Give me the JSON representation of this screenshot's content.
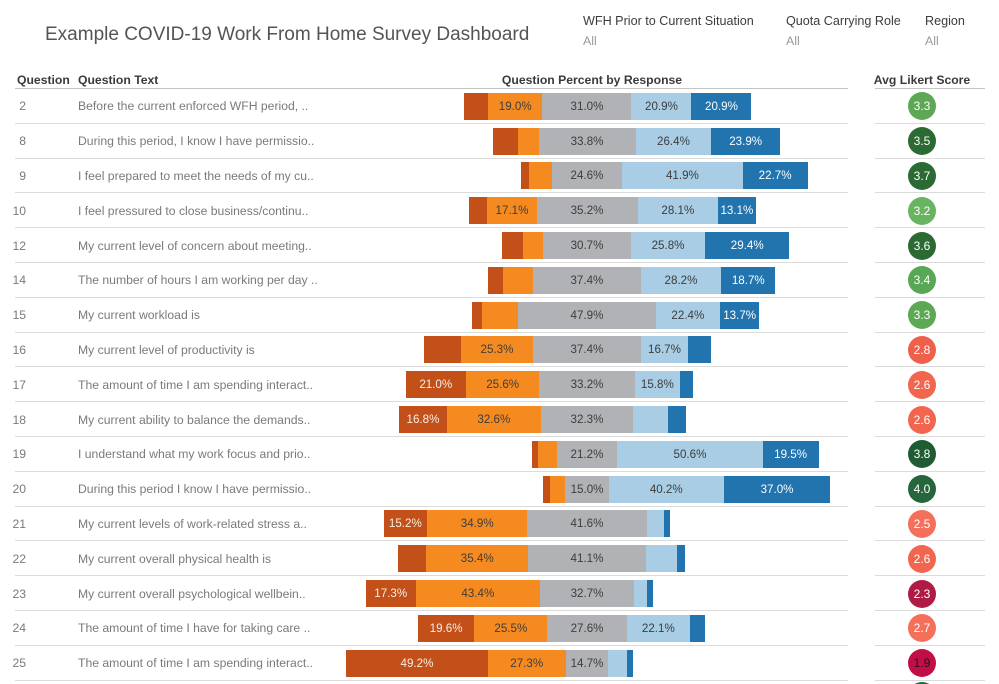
{
  "title": "Example COVID-19 Work From Home Survey Dashboard",
  "filters": [
    {
      "label": "WFH Prior to Current Situation",
      "value": "All"
    },
    {
      "label": "Quota Carrying Role",
      "value": "All"
    },
    {
      "label": "Region",
      "value": "All"
    }
  ],
  "columns": {
    "question": "Question",
    "question_text": "Question Text",
    "percent": "Question Percent by Response",
    "score": "Avg Likert Score"
  },
  "chart_data": {
    "type": "bar",
    "subtype": "horizontal_diverging_stacked_likert",
    "title": "Question Percent by Response",
    "x_unit": "percent_of_responses",
    "axis_hidden": true,
    "segment_colors": [
      "#C25018",
      "#F58A20",
      "#B0B2B5",
      "#A8CDE5",
      "#2174AE"
    ],
    "neutral_centered": true,
    "rows": [
      {
        "question": "2",
        "text": "Before the current enforced WFH period, ..",
        "values": [
          8.2,
          19.0,
          31.0,
          20.9,
          20.9
        ],
        "labels": [
          "",
          "19.0%",
          "31.0%",
          "20.9%",
          "20.9%"
        ],
        "score": "3.3",
        "score_color": "#5CA854",
        "score_text_color": "#FFFFFF"
      },
      {
        "question": "8",
        "text": "During this period, I know I have permissio..",
        "values": [
          8.8,
          7.1,
          33.8,
          26.4,
          23.9
        ],
        "labels": [
          "",
          "",
          "33.8%",
          "26.4%",
          "23.9%"
        ],
        "score": "3.5",
        "score_color": "#2B6A33",
        "score_text_color": "#FFFFFF"
      },
      {
        "question": "9",
        "text": "I feel prepared to meet the needs of my cu..",
        "values": [
          3.0,
          7.8,
          24.6,
          41.9,
          22.7
        ],
        "labels": [
          "",
          "",
          "24.6%",
          "41.9%",
          "22.7%"
        ],
        "score": "3.7",
        "score_color": "#2B6A33",
        "score_text_color": "#FFFFFF"
      },
      {
        "question": "10",
        "text": "I feel pressured to close business/continu..",
        "values": [
          6.5,
          17.1,
          35.2,
          28.1,
          13.1
        ],
        "labels": [
          "",
          "17.1%",
          "35.2%",
          "28.1%",
          "13.1%"
        ],
        "score": "3.2",
        "score_color": "#69B460",
        "score_text_color": "#FFFFFF"
      },
      {
        "question": "12",
        "text": "My current level of concern about meeting..",
        "values": [
          7.0,
          7.1,
          30.7,
          25.8,
          29.4
        ],
        "labels": [
          "",
          "",
          "30.7%",
          "25.8%",
          "29.4%"
        ],
        "score": "3.6",
        "score_color": "#2B6A33",
        "score_text_color": "#FFFFFF"
      },
      {
        "question": "14",
        "text": "The number of hours I am working per day ..",
        "values": [
          5.2,
          10.5,
          37.4,
          28.2,
          18.7
        ],
        "labels": [
          "",
          "",
          "37.4%",
          "28.2%",
          "18.7%"
        ],
        "score": "3.4",
        "score_color": "#58A754",
        "score_text_color": "#FFFFFF"
      },
      {
        "question": "15",
        "text": "My current workload is",
        "values": [
          3.5,
          12.5,
          47.9,
          22.4,
          13.7
        ],
        "labels": [
          "",
          "",
          "47.9%",
          "22.4%",
          "13.7%"
        ],
        "score": "3.3",
        "score_color": "#5CA854",
        "score_text_color": "#FFFFFF"
      },
      {
        "question": "16",
        "text": "My current level of productivity is",
        "values": [
          12.7,
          25.3,
          37.4,
          16.7,
          7.9
        ],
        "labels": [
          "",
          "25.3%",
          "37.4%",
          "16.7%",
          ""
        ],
        "score": "2.8",
        "score_color": "#EF604B",
        "score_text_color": "#FFFFFF"
      },
      {
        "question": "17",
        "text": "The amount of time I am spending interact..",
        "values": [
          21.0,
          25.6,
          33.2,
          15.8,
          4.4
        ],
        "labels": [
          "21.0%",
          "25.6%",
          "33.2%",
          "15.8%",
          ""
        ],
        "score": "2.6",
        "score_color": "#F2654F",
        "score_text_color": "#FFFFFF"
      },
      {
        "question": "18",
        "text": "My current ability to balance the demands..",
        "values": [
          16.8,
          32.6,
          32.3,
          12.1,
          6.2
        ],
        "labels": [
          "16.8%",
          "32.6%",
          "32.3%",
          "",
          ""
        ],
        "score": "2.6",
        "score_color": "#F2654F",
        "score_text_color": "#FFFFFF"
      },
      {
        "question": "19",
        "text": "I understand what my work focus and prio..",
        "values": [
          2.3,
          6.4,
          21.2,
          50.6,
          19.5
        ],
        "labels": [
          "",
          "",
          "21.2%",
          "50.6%",
          "19.5%"
        ],
        "score": "3.8",
        "score_color": "#1F5B33",
        "score_text_color": "#FFFFFF"
      },
      {
        "question": "20",
        "text": "During this period I know I have permissio..",
        "values": [
          2.3,
          5.5,
          15.0,
          40.2,
          37.0
        ],
        "labels": [
          "",
          "",
          "15.0%",
          "40.2%",
          "37.0%"
        ],
        "score": "4.0",
        "score_color": "#26663C",
        "score_text_color": "#FFFFFF"
      },
      {
        "question": "21",
        "text": "My current levels of work-related stress a..",
        "values": [
          15.2,
          34.9,
          41.6,
          6.0,
          2.3
        ],
        "labels": [
          "15.2%",
          "34.9%",
          "41.6%",
          "",
          ""
        ],
        "score": "2.5",
        "score_color": "#F4705A",
        "score_text_color": "#FFFFFF"
      },
      {
        "question": "22",
        "text": "My current overall physical health is",
        "values": [
          9.8,
          35.4,
          41.1,
          10.9,
          2.8
        ],
        "labels": [
          "",
          "35.4%",
          "41.1%",
          "",
          ""
        ],
        "score": "2.6",
        "score_color": "#F2654F",
        "score_text_color": "#FFFFFF"
      },
      {
        "question": "23",
        "text": "My current overall psychological wellbein..",
        "values": [
          17.3,
          43.4,
          32.7,
          4.6,
          2.0
        ],
        "labels": [
          "17.3%",
          "43.4%",
          "32.7%",
          "",
          ""
        ],
        "score": "2.3",
        "score_color": "#B01B45",
        "score_text_color": "#FFFFFF"
      },
      {
        "question": "24",
        "text": "The amount of time I have for taking care ..",
        "values": [
          19.6,
          25.5,
          27.6,
          22.1,
          5.2
        ],
        "labels": [
          "19.6%",
          "25.5%",
          "27.6%",
          "22.1%",
          ""
        ],
        "score": "2.7",
        "score_color": "#F4705A",
        "score_text_color": "#FFFFFF"
      },
      {
        "question": "25",
        "text": "The amount of time I am spending interact..",
        "values": [
          49.2,
          27.3,
          14.7,
          6.5,
          2.3
        ],
        "labels": [
          "49.2%",
          "27.3%",
          "14.7%",
          "",
          ""
        ],
        "score": "1.9",
        "score_color": "#C20E46",
        "score_text_color": "#1A1A1A"
      }
    ],
    "partial_next_row_circle_color": "#26663C"
  }
}
